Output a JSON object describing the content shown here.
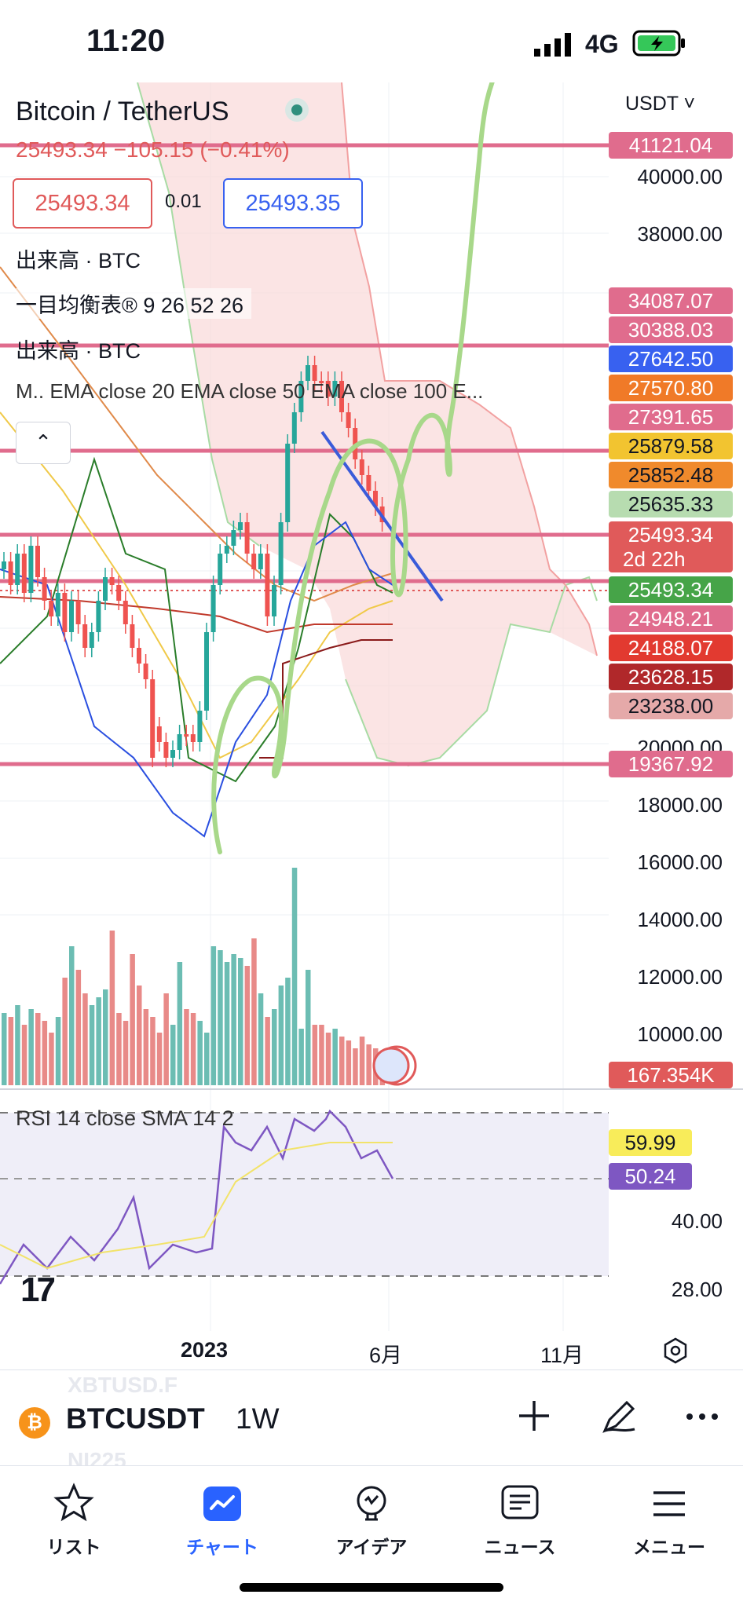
{
  "status_bar": {
    "time": "11:20",
    "network": "4G"
  },
  "legend": {
    "symbol_title": "Bitcoin / TetherUS",
    "price_change": "25493.34 −105.15 (−0.41%)",
    "bid": "25493.34",
    "spread": "0.01",
    "ask": "25493.35",
    "indicators": [
      "出来高 · BTC",
      "一目均衡表® 9 26 52 26",
      "出来高 · BTC",
      "M.. EMA close 20 EMA close 50 EMA close 100 E..."
    ],
    "collapse_icon": "^"
  },
  "currency_selector": "USDT ˅",
  "price_axis": {
    "labels": [
      "40000.00",
      "38000.00",
      "20000.00",
      "18000.00",
      "16000.00",
      "14000.00",
      "12000.00",
      "10000.00"
    ]
  },
  "price_tags": [
    {
      "text": "41121.04",
      "color": "#e06c8d"
    },
    {
      "text": "34087.07",
      "color": "#e06c8d"
    },
    {
      "text": "30388.03",
      "color": "#e06c8d"
    },
    {
      "text": "27642.50",
      "color": "#3861f0"
    },
    {
      "text": "27570.80",
      "color": "#f07a28"
    },
    {
      "text": "27391.65",
      "color": "#e06c8d"
    },
    {
      "text": "25879.58",
      "color": "#f2c430"
    },
    {
      "text": "25852.48",
      "color": "#f08a2c"
    },
    {
      "text": "25635.33",
      "color": "#b7dcb0"
    },
    {
      "text": "25493.34",
      "color": "#e05a5a"
    },
    {
      "text": "2d 22h",
      "color": "#e05a5a"
    },
    {
      "text": "25493.34",
      "color": "#46a448"
    },
    {
      "text": "24948.21",
      "color": "#e06c8d"
    },
    {
      "text": "24188.07",
      "color": "#e23a30"
    },
    {
      "text": "23628.15",
      "color": "#b0282a"
    },
    {
      "text": "23238.00",
      "color": "#e5a9a9"
    },
    {
      "text": "19367.92",
      "color": "#e06c8d"
    },
    {
      "text": "167.354K",
      "color": "#e05a5a"
    }
  ],
  "rsi": {
    "legend": "RSI 14 close SMA 14 2",
    "tags": [
      {
        "text": "59.99",
        "color": "#f8ec5a"
      },
      {
        "text": "50.24",
        "color": "#7e57c2"
      }
    ],
    "axis": [
      "40.00",
      "28.00"
    ]
  },
  "time_axis": {
    "labels": [
      "2023",
      "6月",
      "11月"
    ],
    "settings_icon": "hexagon-settings-icon"
  },
  "symbol_bar": {
    "ghost_top": "XBTUSD.F",
    "ghost_bottom": "NI225",
    "symbol": "BTCUSDT",
    "interval": "1W",
    "coin_letter": "₿"
  },
  "bottom_nav": [
    {
      "label": "リスト",
      "icon": "star-icon"
    },
    {
      "label": "チャート",
      "icon": "chart-icon",
      "active": true
    },
    {
      "label": "アイデア",
      "icon": "lightbulb-icon"
    },
    {
      "label": "ニュース",
      "icon": "news-icon"
    },
    {
      "label": "メニュー",
      "icon": "menu-icon"
    }
  ],
  "chart_data": {
    "type": "candlestick",
    "symbol": "BTCUSDT",
    "interval": "1W",
    "horizontal_levels": [
      41121.04,
      30388.03,
      25879.58,
      25493.34,
      24948.21,
      19367.92
    ]
  }
}
